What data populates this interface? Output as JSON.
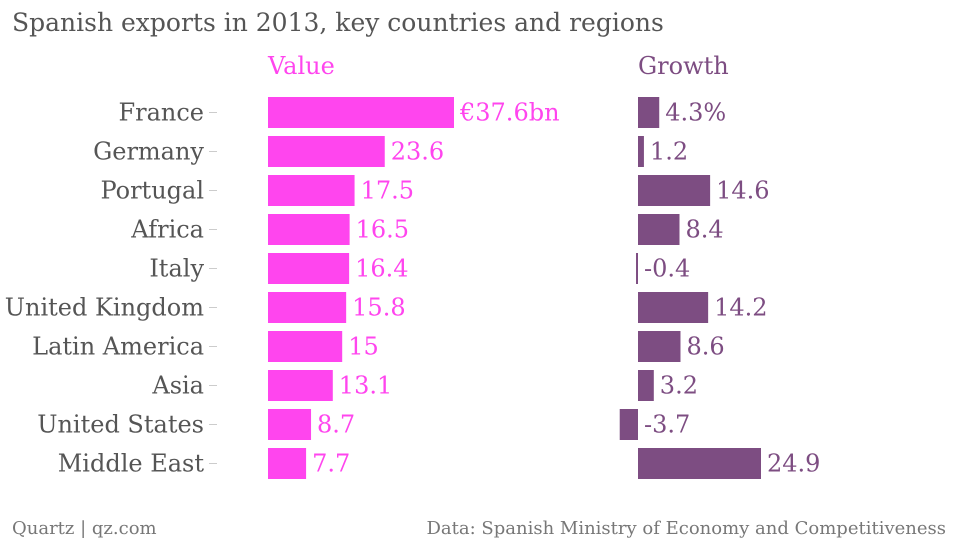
{
  "title": "Spanish exports in 2013, key countries and regions",
  "footer": {
    "credit": "Quartz | qz.com",
    "source": "Data: Spanish Ministry of Economy and Competitiveness"
  },
  "colors": {
    "value_bar": "#ff45ee",
    "value_text": "#ff45ee",
    "growth_bar": "#7d4d82",
    "growth_text": "#7d4d82",
    "category_text": "#555555",
    "tick": "#cccccc"
  },
  "chart_data": [
    {
      "type": "bar",
      "orientation": "horizontal",
      "title": "Value",
      "categories": [
        "France",
        "Germany",
        "Portugal",
        "Africa",
        "Italy",
        "United Kingdom",
        "Latin America",
        "Asia",
        "United States",
        "Middle East"
      ],
      "values": [
        37.6,
        23.6,
        17.5,
        16.5,
        16.4,
        15.8,
        15,
        13.1,
        8.7,
        7.7
      ],
      "data_labels": [
        "€37.6bn",
        "23.6",
        "17.5",
        "16.5",
        "16.4",
        "15.8",
        "15",
        "13.1",
        "8.7",
        "7.7"
      ],
      "xlim": [
        0,
        37.6
      ]
    },
    {
      "type": "bar",
      "orientation": "horizontal",
      "title": "Growth",
      "categories": [
        "France",
        "Germany",
        "Portugal",
        "Africa",
        "Italy",
        "United Kingdom",
        "Latin America",
        "Asia",
        "United States",
        "Middle East"
      ],
      "values": [
        4.3,
        1.2,
        14.6,
        8.4,
        -0.4,
        14.2,
        8.6,
        3.2,
        -3.7,
        24.9
      ],
      "data_labels": [
        "4.3%",
        "1.2",
        "14.6",
        "8.4",
        "-0.4",
        "14.2",
        "8.6",
        "3.2",
        "-3.7",
        "24.9"
      ],
      "xlim": [
        -3.7,
        24.9
      ]
    }
  ]
}
